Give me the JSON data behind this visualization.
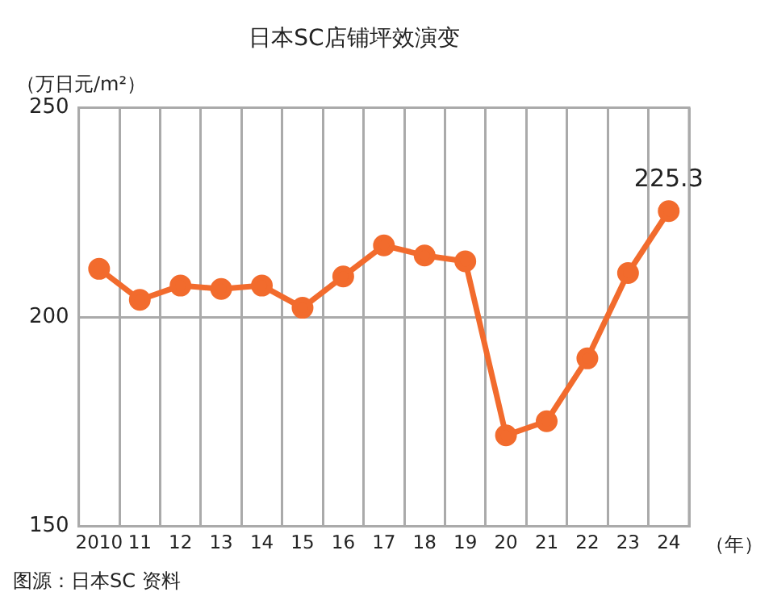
{
  "chart_data": {
    "type": "line",
    "title": "日本SC店铺坪效演变",
    "ylabel": "（万日元/m²）",
    "xlabel": "（年）",
    "categories": [
      "2010",
      "11",
      "12",
      "13",
      "14",
      "15",
      "16",
      "17",
      "18",
      "19",
      "20",
      "21",
      "22",
      "23",
      "24"
    ],
    "series": [
      {
        "color": "#f26b2d",
        "values": [
          211.5,
          204.1,
          207.5,
          206.7,
          207.5,
          202.2,
          209.7,
          217.1,
          214.7,
          213.3,
          171.7,
          175.1,
          190.1,
          210.5,
          225.3
        ],
        "value_labels": [
          null,
          null,
          null,
          null,
          null,
          null,
          null,
          null,
          null,
          null,
          null,
          null,
          null,
          null,
          "225.3"
        ]
      }
    ],
    "ylim": [
      150,
      250
    ],
    "yticks": [
      150,
      200,
      250
    ],
    "grid": true,
    "legend": false,
    "marker": "circle",
    "line_style": "solid",
    "annotations": [
      "图源：日本SC 资料"
    ]
  }
}
